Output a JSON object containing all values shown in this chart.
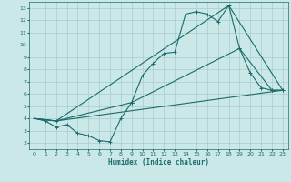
{
  "xlabel": "Humidex (Indice chaleur)",
  "xlim": [
    -0.5,
    23.5
  ],
  "ylim": [
    1.5,
    13.5
  ],
  "xticks": [
    0,
    1,
    2,
    3,
    4,
    5,
    6,
    7,
    8,
    9,
    10,
    11,
    12,
    13,
    14,
    15,
    16,
    17,
    18,
    19,
    20,
    21,
    22,
    23
  ],
  "yticks": [
    2,
    3,
    4,
    5,
    6,
    7,
    8,
    9,
    10,
    11,
    12,
    13
  ],
  "bg_color": "#cbe8e8",
  "grid_color": "#a8cccc",
  "line_color": "#1a6b6b",
  "line1_x": [
    0,
    1,
    2,
    3,
    4,
    5,
    6,
    7,
    8,
    9,
    10,
    11,
    12,
    13,
    14,
    15,
    16,
    17,
    18,
    19,
    20,
    21,
    22,
    23
  ],
  "line1_y": [
    4.0,
    3.8,
    3.3,
    3.5,
    2.8,
    2.6,
    2.2,
    2.1,
    4.0,
    5.3,
    7.5,
    8.5,
    9.3,
    9.4,
    12.5,
    12.7,
    12.5,
    11.9,
    13.2,
    9.7,
    7.7,
    6.5,
    6.3,
    6.3
  ],
  "line2_x": [
    0,
    2,
    9,
    14,
    19,
    22,
    23
  ],
  "line2_y": [
    4.0,
    3.8,
    5.3,
    7.5,
    9.7,
    6.3,
    6.3
  ],
  "line3_x": [
    0,
    2,
    23
  ],
  "line3_y": [
    4.0,
    3.8,
    6.3
  ],
  "line4_x": [
    0,
    2,
    18,
    23
  ],
  "line4_y": [
    4.0,
    3.8,
    13.2,
    6.3
  ]
}
